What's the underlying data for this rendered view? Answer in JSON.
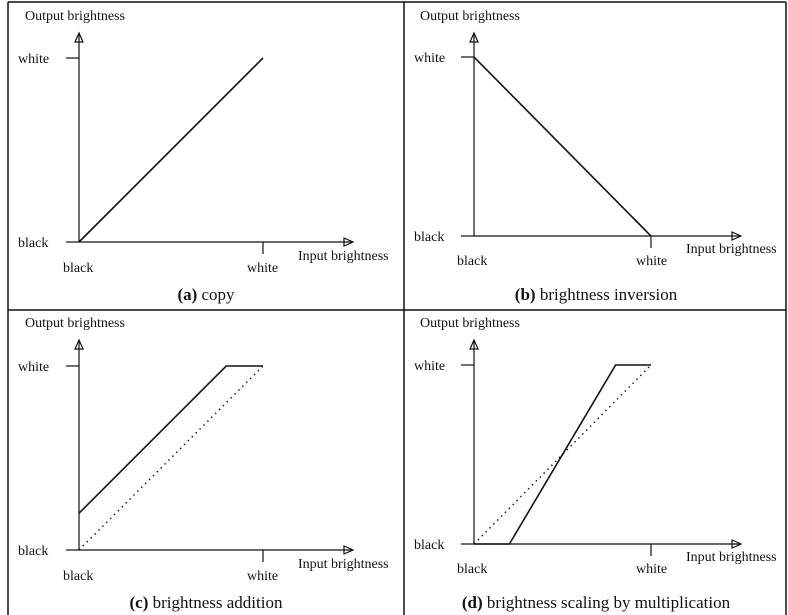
{
  "panels": [
    {
      "id": "a",
      "y_label": "Output brightness",
      "x_label": "Input brightness",
      "y_ticks": {
        "low": "black",
        "high": "white"
      },
      "x_ticks": {
        "low": "black",
        "high": "white"
      },
      "caption_letter": "(a)",
      "caption_text": " copy",
      "curve": [
        [
          0,
          0
        ],
        [
          1,
          1
        ]
      ],
      "reference": []
    },
    {
      "id": "b",
      "y_label": "Output brightness",
      "x_label": "Input brightness",
      "y_ticks": {
        "low": "black",
        "high": "white"
      },
      "x_ticks": {
        "low": "black",
        "high": "white"
      },
      "caption_letter": "(b)",
      "caption_text": " brightness inversion",
      "curve": [
        [
          0,
          1
        ],
        [
          1,
          0
        ]
      ],
      "reference": []
    },
    {
      "id": "c",
      "y_label": "Output brightness",
      "x_label": "Input brightness",
      "y_ticks": {
        "low": "black",
        "high": "white"
      },
      "x_ticks": {
        "low": "black",
        "high": "white"
      },
      "caption_letter": "(c)",
      "caption_text": " brightness addition",
      "curve": [
        [
          0,
          0.2
        ],
        [
          0.8,
          1
        ],
        [
          1,
          1
        ]
      ],
      "reference": [
        [
          0,
          0
        ],
        [
          1,
          1
        ]
      ]
    },
    {
      "id": "d",
      "y_label": "Output brightness",
      "x_label": "Input brightness",
      "y_ticks": {
        "low": "black",
        "high": "white"
      },
      "x_ticks": {
        "low": "black",
        "high": "white"
      },
      "caption_letter": "(d)",
      "caption_text": " brightness scaling by multiplication",
      "curve": [
        [
          0,
          0
        ],
        [
          0.2,
          0
        ],
        [
          0.8,
          1
        ],
        [
          1,
          1
        ]
      ],
      "reference": [
        [
          0,
          0
        ],
        [
          1,
          1
        ]
      ]
    }
  ]
}
